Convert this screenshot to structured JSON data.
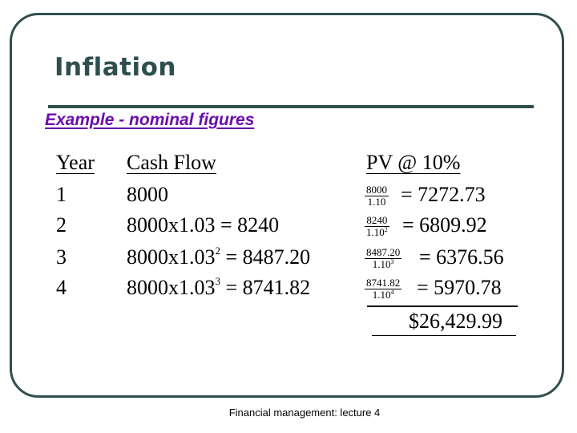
{
  "slide": {
    "title": "Inflation",
    "subtitle": "Example - nominal figures",
    "footer": "Financial management: lecture 4"
  },
  "table": {
    "headers": {
      "year": "Year",
      "cash_flow": "Cash Flow",
      "pv": "PV @ 10%"
    },
    "rows": [
      {
        "year": "1",
        "cf_base": "8000",
        "cf_exp": "",
        "cf_result": "",
        "pv_num": "8000",
        "pv_den": "1.10",
        "pv_den_exp": "",
        "pv_value": "= 7272.73"
      },
      {
        "year": "2",
        "cf_base": "8000x1.03 = 8240",
        "cf_exp": "",
        "cf_result": "",
        "pv_num": "8240",
        "pv_den": "1.10",
        "pv_den_exp": "2",
        "pv_value": "= 6809.92"
      },
      {
        "year": "3",
        "cf_base": "8000x1.03",
        "cf_exp": "2",
        "cf_result": " = 8487.20",
        "pv_num": "8487.20",
        "pv_den": "1.10",
        "pv_den_exp": "3",
        "pv_value": "= 6376.56"
      },
      {
        "year": "4",
        "cf_base": "8000x1.03",
        "cf_exp": "3",
        "cf_result": " = 8741.82",
        "pv_num": "8741.82",
        "pv_den": "1.10",
        "pv_den_exp": "4",
        "pv_value": "= 5970.78"
      }
    ],
    "total": "$26,429.99"
  }
}
